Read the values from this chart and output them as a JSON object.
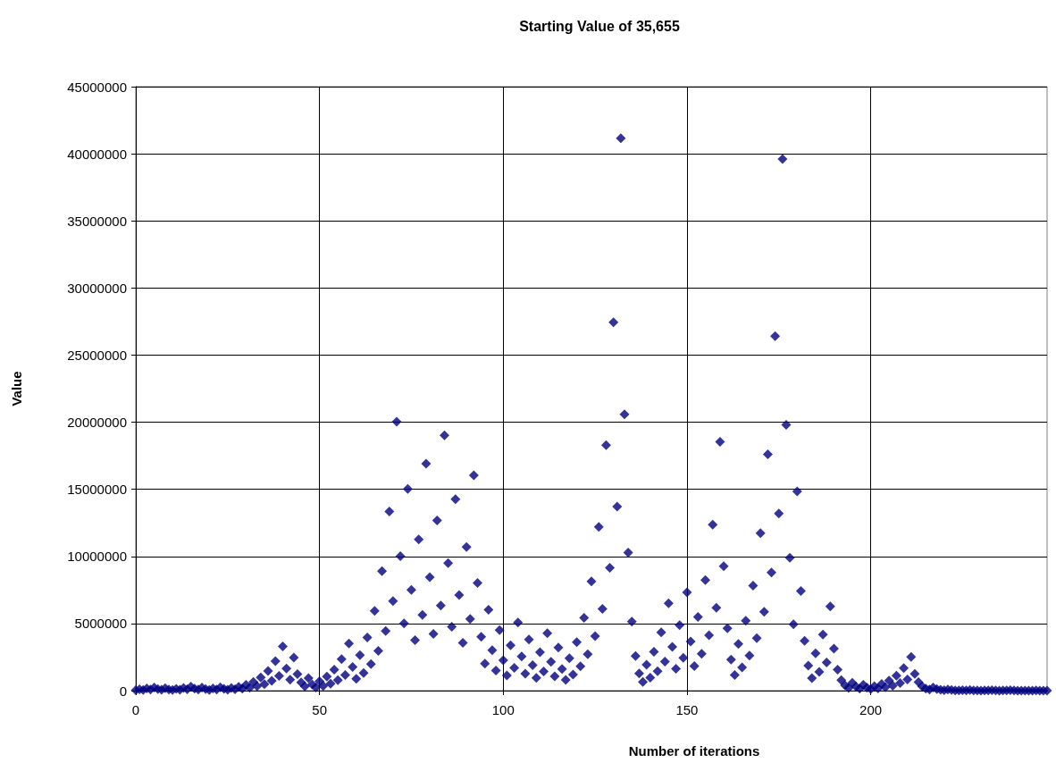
{
  "chart_data": {
    "type": "scatter",
    "title": "Starting Value of 35,655",
    "xlabel": "Number of iterations",
    "ylabel": "Value",
    "x": [
      0,
      1,
      2,
      3,
      4,
      5,
      6,
      7,
      8,
      9,
      10,
      11,
      12,
      13,
      14,
      15,
      16,
      17,
      18,
      19,
      20,
      21,
      22,
      23,
      24,
      25,
      26,
      27,
      28,
      29,
      30,
      31,
      32,
      33,
      34,
      35,
      36,
      37,
      38,
      39,
      40,
      41,
      42,
      43,
      44,
      45,
      46,
      47,
      48,
      49,
      50,
      51,
      52,
      53,
      54,
      55,
      56,
      57,
      58,
      59,
      60,
      61,
      62,
      63,
      64,
      65,
      66,
      67,
      68,
      69,
      70,
      71,
      72,
      73,
      74,
      75,
      76,
      77,
      78,
      79,
      80,
      81,
      82,
      83,
      84,
      85,
      86,
      87,
      88,
      89,
      90,
      91,
      92,
      93,
      94,
      95,
      96,
      97,
      98,
      99,
      100,
      101,
      102,
      103,
      104,
      105,
      106,
      107,
      108,
      109,
      110,
      111,
      112,
      113,
      114,
      115,
      116,
      117,
      118,
      119,
      120,
      121,
      122,
      123,
      124,
      125,
      126,
      127,
      128,
      129,
      130,
      131,
      132,
      133,
      134,
      135,
      136,
      137,
      138,
      139,
      140,
      141,
      142,
      143,
      144,
      145,
      146,
      147,
      148,
      149,
      150,
      151,
      152,
      153,
      154,
      155,
      156,
      157,
      158,
      159,
      160,
      161,
      162,
      163,
      164,
      165,
      166,
      167,
      168,
      169,
      170,
      171,
      172,
      173,
      174,
      175,
      176,
      177,
      178,
      179,
      180,
      181,
      182,
      183,
      184,
      185,
      186,
      187,
      188,
      189,
      190,
      191,
      192,
      193,
      194,
      195,
      196,
      197,
      198,
      199,
      200,
      201,
      202,
      203,
      204,
      205,
      206,
      207,
      208,
      209,
      210,
      211,
      212,
      213,
      214,
      215,
      216,
      217,
      218,
      219,
      220,
      221,
      222,
      223,
      224,
      225,
      226,
      227,
      228,
      229,
      230,
      231,
      232,
      233,
      234,
      235,
      236,
      237,
      238,
      239,
      240,
      241,
      242,
      243,
      244,
      245,
      246,
      247,
      248
    ],
    "values": [
      35655,
      106966,
      53483,
      160450,
      80225,
      240676,
      120338,
      60169,
      180508,
      90254,
      45127,
      135382,
      67691,
      203074,
      101537,
      304612,
      152306,
      76153,
      228460,
      114230,
      57115,
      171346,
      85673,
      257020,
      128510,
      64255,
      192766,
      96383,
      289150,
      144575,
      433726,
      216863,
      650590,
      325295,
      975886,
      487943,
      1463830,
      731915,
      2195746,
      1097873,
      3293620,
      1646810,
      823405,
      2470216,
      1235108,
      617554,
      308777,
      926332,
      463166,
      231583,
      694750,
      347375,
      1042126,
      521063,
      1563190,
      781595,
      2344786,
      1172393,
      3517180,
      1758590,
      879295,
      2637886,
      1318943,
      3956830,
      1978415,
      5935246,
      2967623,
      8902870,
      4451435,
      13354306,
      6677153,
      20031460,
      10015730,
      5007865,
      15023596,
      7511798,
      3755899,
      11267698,
      5633849,
      16901548,
      8450774,
      4225387,
      12676162,
      6338081,
      19014244,
      9507122,
      4753561,
      14260684,
      7130342,
      3565171,
      10695514,
      5347757,
      16043272,
      8021636,
      4010818,
      2005409,
      6016228,
      3008114,
      1504057,
      4512172,
      2256086,
      1128043,
      3384130,
      1692065,
      5076196,
      2538098,
      1269049,
      3807148,
      1903574,
      951787,
      2855362,
      1427681,
      4283044,
      2141522,
      1070761,
      3212284,
      1606142,
      803071,
      2409214,
      1204607,
      3613822,
      1806911,
      5420734,
      2710367,
      8131102,
      4065551,
      12196654,
      6098327,
      18294982,
      9147491,
      27442474,
      13721237,
      41163712,
      20581856,
      10290928,
      5145464,
      2572732,
      1286366,
      643183,
      1929550,
      964775,
      2894326,
      1447163,
      4341490,
      2170745,
      6512236,
      3256118,
      1628059,
      4884178,
      2442089,
      7326268,
      3663134,
      1831567,
      5494702,
      2747351,
      8242054,
      4121027,
      12363082,
      6181541,
      18544624,
      9272312,
      4636156,
      2318078,
      1159039,
      3477118,
      1738559,
      5215678,
      2607839,
      7823518,
      3911759,
      11735278,
      5867639,
      17602918,
      8801459,
      26404378,
      13202189,
      39606568,
      19803284,
      9901642,
      4950821,
      14852464,
      7426232,
      3713116,
      1856558,
      928279,
      2784838,
      1392419,
      4177258,
      2088629,
      6265888,
      3132944,
      1566472,
      783236,
      391618,
      195809,
      587428,
      293714,
      146857,
      440572,
      220286,
      110143,
      330430,
      165215,
      495646,
      247823,
      743470,
      371735,
      1115206,
      557603,
      1672810,
      836405,
      2509216,
      1254608,
      627304,
      313652,
      156826,
      78413,
      235240,
      117620,
      58810,
      29405,
      88216,
      44108,
      22054,
      11027,
      33082,
      16541,
      49624,
      24812,
      12406,
      6203,
      18610,
      9305,
      27916,
      13958,
      6979,
      20938,
      10469,
      31408,
      15704,
      7852,
      3926,
      1963,
      5890,
      2945,
      8836,
      4418,
      2209,
      6628
    ],
    "color": "#000080",
    "marker": "diamond",
    "xlim": [
      0,
      248
    ],
    "xticks": [
      0,
      50,
      100,
      150,
      200
    ],
    "ylim": [
      0,
      45000000
    ],
    "yticks": [
      0,
      5000000,
      10000000,
      15000000,
      20000000,
      25000000,
      30000000,
      35000000,
      40000000,
      45000000
    ],
    "grid": true
  }
}
